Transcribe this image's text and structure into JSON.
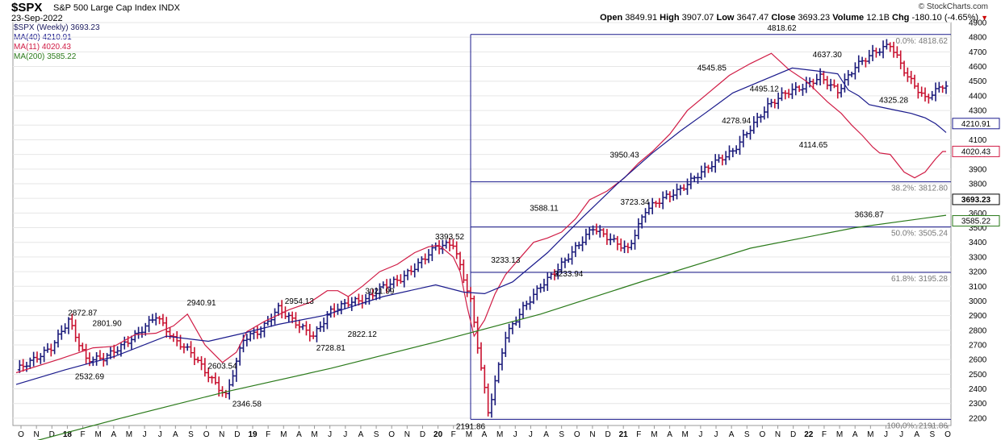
{
  "header": {
    "symbol": "$SPX",
    "description": "S&P 500 Large Cap Index  INDX",
    "date": "23-Sep-2022",
    "brand": "© StockCharts.com",
    "open_label": "Open",
    "open": "3849.91",
    "high_label": "High",
    "high": "3907.07",
    "low_label": "Low",
    "low": "3647.47",
    "close_label": "Close",
    "close": "3693.23",
    "volume_label": "Volume",
    "volume": "12.1B",
    "chg_label": "Chg",
    "chg": "-180.10 (-4.65%)"
  },
  "legend": [
    {
      "label": "$SPX (Weekly) 3693.23",
      "color": "#1a1a5e"
    },
    {
      "label": "MA(40) 4210.91",
      "color": "#1a1a8c"
    },
    {
      "label": "MA(11) 4020.43",
      "color": "#d01c45"
    },
    {
      "label": "MA(200) 3585.22",
      "color": "#2a7a1a"
    }
  ],
  "colors": {
    "up": "#1a1a7a",
    "down": "#c8102e",
    "ma40": "#1a1a8c",
    "ma11": "#d01c45",
    "ma200": "#2a7a1a",
    "fib": "#1a1a8c",
    "grid": "#e6e6e6"
  },
  "chart_data": {
    "type": "line",
    "title": "$SPX S&P 500 Large Cap Index INDX",
    "ylim": [
      2150,
      4900
    ],
    "y_ticks": [
      2200,
      2300,
      2400,
      2500,
      2600,
      2700,
      2800,
      2900,
      3000,
      3100,
      3200,
      3300,
      3400,
      3500,
      3600,
      3700,
      3800,
      3900,
      4000,
      4100,
      4200,
      4300,
      4400,
      4500,
      4600,
      4700,
      4800,
      4900
    ],
    "x_ticks": [
      "O",
      "N",
      "D",
      "18",
      "F",
      "M",
      "A",
      "M",
      "J",
      "J",
      "A",
      "S",
      "O",
      "N",
      "D",
      "19",
      "F",
      "M",
      "A",
      "M",
      "J",
      "J",
      "A",
      "S",
      "O",
      "N",
      "D",
      "20",
      "F",
      "M",
      "A",
      "M",
      "J",
      "J",
      "A",
      "S",
      "O",
      "N",
      "D",
      "21",
      "F",
      "M",
      "A",
      "M",
      "J",
      "J",
      "A",
      "S",
      "O",
      "N",
      "D",
      "22",
      "F",
      "M",
      "A",
      "M",
      "J",
      "J",
      "A",
      "S",
      "O"
    ],
    "x_tick_bold": [
      "18",
      "19",
      "20",
      "21",
      "22"
    ],
    "series": [
      {
        "name": "$SPX (Weekly)",
        "x": [
          0,
          5,
          10,
          15,
          20,
          25,
          30,
          35,
          40,
          45,
          50,
          55,
          60,
          65,
          70,
          75,
          80,
          85,
          90,
          95,
          100,
          105,
          110,
          115,
          120,
          125,
          130,
          135,
          140,
          145,
          150,
          155,
          160,
          165,
          170,
          175,
          180,
          185,
          190,
          195,
          200,
          205,
          210,
          215,
          220,
          225,
          230,
          235,
          240,
          245,
          250,
          255,
          260,
          265
        ],
        "values": [
          2530,
          2600,
          2680,
          2870,
          2600,
          2610,
          2690,
          2780,
          2900,
          2740,
          2650,
          2490,
          2350,
          2740,
          2800,
          2950,
          2850,
          2760,
          2930,
          2990,
          3010,
          3100,
          3150,
          3250,
          3370,
          3390,
          3000,
          2240,
          2760,
          2950,
          3100,
          3220,
          3360,
          3500,
          3420,
          3350,
          3620,
          3700,
          3760,
          3860,
          3950,
          4020,
          4180,
          4330,
          4420,
          4460,
          4530,
          4430,
          4600,
          4690,
          4750,
          4530,
          4380,
          4470
        ]
      },
      {
        "name": "MA(11)",
        "x": [
          0,
          12,
          22,
          28,
          34,
          40,
          45,
          49,
          54,
          59,
          63,
          66,
          71,
          78,
          84,
          89,
          92,
          95,
          99,
          104,
          109,
          114,
          118,
          121,
          125,
          127,
          129,
          131,
          134,
          137,
          140,
          144,
          148,
          152,
          156,
          160,
          164,
          169,
          174,
          178,
          182,
          187,
          192,
          198,
          204,
          210,
          216,
          221,
          226,
          232,
          236,
          239,
          242,
          245,
          247,
          250,
          254,
          257,
          260,
          263,
          265,
          266
        ],
        "values": [
          2510,
          2600,
          2680,
          2690,
          2770,
          2780,
          2830,
          2910,
          2700,
          2580,
          2650,
          2790,
          2860,
          2940,
          2990,
          3070,
          3070,
          3030,
          3100,
          3200,
          3250,
          3330,
          3370,
          3380,
          3300,
          3200,
          2960,
          2760,
          2870,
          3050,
          3180,
          3290,
          3400,
          3430,
          3470,
          3560,
          3690,
          3750,
          3840,
          3940,
          4020,
          4140,
          4300,
          4420,
          4540,
          4620,
          4690,
          4580,
          4500,
          4360,
          4280,
          4200,
          4130,
          4050,
          4010,
          4000,
          3880,
          3840,
          3880,
          3970,
          4020,
          4020
        ]
      },
      {
        "name": "MA(40)",
        "x": [
          0,
          14,
          28,
          43,
          55,
          65,
          75,
          88,
          105,
          120,
          128,
          134,
          142,
          152,
          162,
          172,
          182,
          190,
          197,
          205,
          213,
          222,
          229,
          232,
          235,
          238,
          241,
          244,
          248,
          252,
          256,
          260,
          263,
          265,
          266
        ],
        "values": [
          2430,
          2530,
          2620,
          2760,
          2725,
          2780,
          2840,
          2900,
          3030,
          3110,
          3060,
          3050,
          3130,
          3330,
          3570,
          3800,
          4010,
          4160,
          4280,
          4420,
          4500,
          4590,
          4570,
          4560,
          4550,
          4440,
          4400,
          4340,
          4320,
          4300,
          4280,
          4250,
          4210,
          4170,
          4150
        ]
      },
      {
        "name": "MA(200)",
        "x": [
          0,
          30,
          60,
          90,
          120,
          150,
          180,
          210,
          240,
          266
        ],
        "values": [
          2010,
          2200,
          2380,
          2540,
          2720,
          2910,
          3140,
          3360,
          3500,
          3585
        ]
      }
    ],
    "fib_levels": [
      {
        "label": "0.0%: 4818.62",
        "value": 4818.62
      },
      {
        "label": "38.2%: 3812.80",
        "value": 3812.8
      },
      {
        "label": "50.0%: 3505.24",
        "value": 3505.24
      },
      {
        "label": "61.8%: 3195.28",
        "value": 3195.28
      },
      {
        "label": "100.0%: 2191.86",
        "value": 2191.86
      }
    ],
    "price_annotations": [
      {
        "text": "2872.87",
        "x": 19,
        "value": 2872.87,
        "pos": "above"
      },
      {
        "text": "2801.90",
        "x": 26,
        "value": 2801.9,
        "pos": "above"
      },
      {
        "text": "2532.69",
        "x": 21,
        "value": 2532.69,
        "pos": "below"
      },
      {
        "text": "2940.91",
        "x": 53,
        "value": 2940.91,
        "pos": "above"
      },
      {
        "text": "2603.54",
        "x": 59,
        "value": 2603.54,
        "pos": "below"
      },
      {
        "text": "2346.58",
        "x": 66,
        "value": 2346.58,
        "pos": "below"
      },
      {
        "text": "2954.13",
        "x": 81,
        "value": 2954.13,
        "pos": "above"
      },
      {
        "text": "2728.81",
        "x": 90,
        "value": 2728.81,
        "pos": "below"
      },
      {
        "text": "2822.12",
        "x": 99,
        "value": 2822.12,
        "pos": "below"
      },
      {
        "text": "3021.99",
        "x": 104,
        "value": 3021.99,
        "pos": "above"
      },
      {
        "text": "3393.52",
        "x": 124,
        "value": 3393.52,
        "pos": "above"
      },
      {
        "text": "2191.86",
        "x": 130,
        "value": 2191.86,
        "pos": "below"
      },
      {
        "text": "3233.13",
        "x": 140,
        "value": 3233.13,
        "pos": "above"
      },
      {
        "text": "3588.11",
        "x": 151,
        "value": 3588.11,
        "pos": "above"
      },
      {
        "text": "3233.94",
        "x": 158,
        "value": 3233.94,
        "pos": "below"
      },
      {
        "text": "3950.43",
        "x": 174,
        "value": 3950.43,
        "pos": "above"
      },
      {
        "text": "3723.34",
        "x": 177,
        "value": 3723.34,
        "pos": "below"
      },
      {
        "text": "4545.85",
        "x": 199,
        "value": 4545.85,
        "pos": "above"
      },
      {
        "text": "4278.94",
        "x": 206,
        "value": 4278.94,
        "pos": "below"
      },
      {
        "text": "4495.12",
        "x": 214,
        "value": 4495.12,
        "pos": "below"
      },
      {
        "text": "4818.62",
        "x": 219,
        "value": 4818.62,
        "pos": "above"
      },
      {
        "text": "4637.30",
        "x": 232,
        "value": 4637.3,
        "pos": "above"
      },
      {
        "text": "4114.65",
        "x": 228,
        "value": 4114.65,
        "pos": "below"
      },
      {
        "text": "4325.28",
        "x": 251,
        "value": 4325.28,
        "pos": "above"
      },
      {
        "text": "3636.87",
        "x": 244,
        "value": 3636.87,
        "pos": "below"
      }
    ],
    "right_tags": [
      {
        "text": "4210.91",
        "value": 4210.91,
        "style": "ma40"
      },
      {
        "text": "4020.43",
        "value": 4020.43,
        "style": "ma11"
      },
      {
        "text": "3693.23",
        "value": 3693.23,
        "style": "close"
      },
      {
        "text": "3585.22",
        "value": 3585.22,
        "style": "ma200"
      }
    ]
  }
}
